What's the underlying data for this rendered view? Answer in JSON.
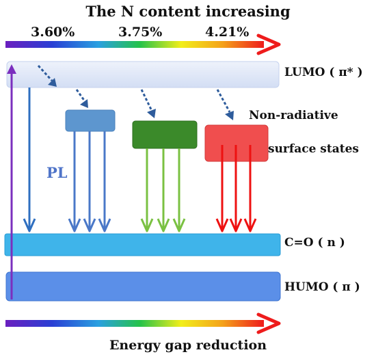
{
  "diagram": {
    "title": "The N content increasing",
    "percentages": [
      "3.60%",
      "3.75%",
      "4.21%"
    ],
    "levels": {
      "lumo": "LUMO ( π* )",
      "carbonyl": "C=O ( n )",
      "humo": "HUMO ( π )"
    },
    "non_radiative": [
      "Non-radiative",
      "surface states"
    ],
    "emission_label": "PL",
    "bottom_label": "Energy gap reduction"
  },
  "colors": {
    "lumo_band": "#dbe4f6",
    "carbonyl_band": "#3fb4ea",
    "humo_band": "#5b8fe8",
    "state_blue": "#5d96cf",
    "state_green": "#3b8a2a",
    "state_red": "#f04e4e",
    "arrow_blue": "#2f6fc0",
    "arrow_green": "#7ac142",
    "arrow_red": "#ee1111",
    "excitation_purple": "#7b2fbe",
    "dotted_arrow": "#2e5c9c"
  }
}
